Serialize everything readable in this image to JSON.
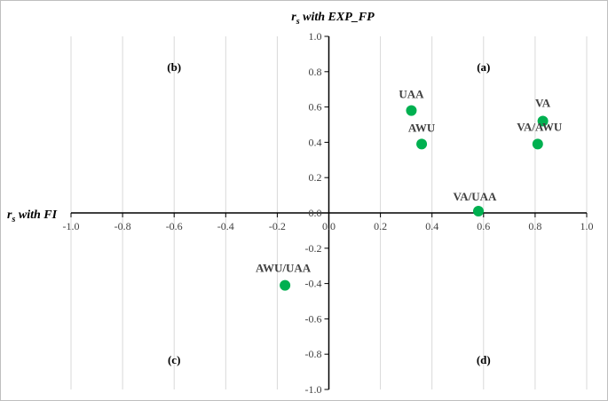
{
  "chart_data": {
    "type": "scatter",
    "xlabel": {
      "main": "r",
      "sub": "s",
      "rest": " with FI"
    },
    "ylabel": {
      "main": "r",
      "sub": "s",
      "rest": " with EXP_FP"
    },
    "xlim": [
      -1.0,
      1.0
    ],
    "ylim": [
      -1.0,
      1.0
    ],
    "xticks": [
      -1.0,
      -0.8,
      -0.6,
      -0.4,
      -0.2,
      0.0,
      0.2,
      0.4,
      0.6,
      0.8,
      1.0
    ],
    "yticks": [
      1.0,
      0.8,
      0.6,
      0.4,
      0.2,
      0.0,
      -0.2,
      -0.4,
      -0.6,
      -0.8,
      -1.0
    ],
    "xtick_labels": [
      "-1.0",
      "-0.8",
      "-0.6",
      "-0.4",
      "-0.2",
      "0.0",
      "0.2",
      "0.4",
      "0.6",
      "0.8",
      "1.0"
    ],
    "ytick_labels": [
      "1.0",
      "0.8",
      "0.6",
      "0.4",
      "0.2",
      "0.0",
      "-0.2",
      "-0.4",
      "-0.6",
      "-0.8",
      "-1.0"
    ],
    "grid": "vertical",
    "marker_color": "#00b050",
    "points": [
      {
        "label": "UAA",
        "x": 0.32,
        "y": 0.58
      },
      {
        "label": "AWU",
        "x": 0.36,
        "y": 0.39
      },
      {
        "label": "VA",
        "x": 0.83,
        "y": 0.52
      },
      {
        "label": "VA/AWU",
        "x": 0.81,
        "y": 0.39
      },
      {
        "label": "VA/UAA",
        "x": 0.58,
        "y": 0.01
      },
      {
        "label": "AWU/UAA",
        "x": -0.17,
        "y": -0.41
      }
    ],
    "quadrants": [
      {
        "label": "(a)",
        "x": 0.6,
        "y": 0.83
      },
      {
        "label": "(b)",
        "x": -0.6,
        "y": 0.83
      },
      {
        "label": "(c)",
        "x": -0.6,
        "y": -0.83
      },
      {
        "label": "(d)",
        "x": 0.6,
        "y": -0.83
      }
    ]
  }
}
